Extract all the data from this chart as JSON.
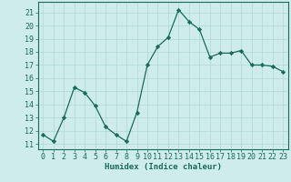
{
  "x": [
    0,
    1,
    2,
    3,
    4,
    5,
    6,
    7,
    8,
    9,
    10,
    11,
    12,
    13,
    14,
    15,
    16,
    17,
    18,
    19,
    20,
    21,
    22,
    23
  ],
  "y": [
    11.7,
    11.2,
    13.0,
    15.3,
    14.9,
    13.9,
    12.3,
    11.7,
    11.2,
    13.4,
    17.0,
    18.4,
    19.1,
    21.2,
    20.3,
    19.7,
    17.6,
    17.9,
    17.9,
    18.1,
    17.0,
    17.0,
    16.9,
    16.5
  ],
  "line_color": "#1a6b5a",
  "marker": "D",
  "markersize": 2.2,
  "linewidth": 0.9,
  "bg_color": "#ceecea",
  "grid_color": "#b0d8d4",
  "xlabel": "Humidex (Indice chaleur)",
  "ylim": [
    10.6,
    21.8
  ],
  "xlim": [
    -0.5,
    23.5
  ],
  "yticks": [
    11,
    12,
    13,
    14,
    15,
    16,
    17,
    18,
    19,
    20,
    21
  ],
  "xticks": [
    0,
    1,
    2,
    3,
    4,
    5,
    6,
    7,
    8,
    9,
    10,
    11,
    12,
    13,
    14,
    15,
    16,
    17,
    18,
    19,
    20,
    21,
    22,
    23
  ],
  "xlabel_fontsize": 6.5,
  "tick_fontsize": 6.0,
  "tick_color": "#1a6b5a",
  "axis_color": "#1a6b5a"
}
